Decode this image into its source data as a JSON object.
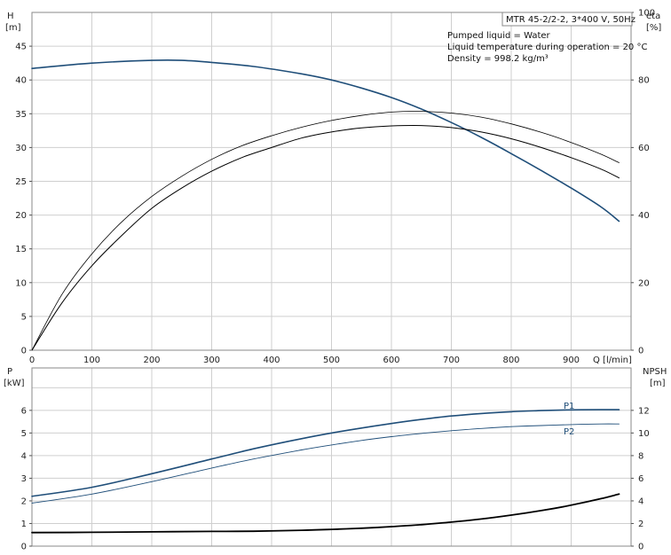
{
  "chart_data": [
    {
      "type": "line",
      "title": "MTR 45-2/2-2, 3*400 V, 50Hz",
      "annotations": [
        "Pumped liquid = Water",
        "Liquid temperature during operation = 20 °C",
        "Density = 998.2 kg/m³"
      ],
      "xlabel": "Q [l/min]",
      "xlim": [
        0,
        1000
      ],
      "x_ticks": [
        "0",
        "100",
        "200",
        "300",
        "400",
        "500",
        "600",
        "700",
        "800",
        "900"
      ],
      "y_left_label": [
        "H",
        "[m]"
      ],
      "y_left_lim": [
        0,
        50
      ],
      "y_left_ticks": [
        "0",
        "5",
        "10",
        "15",
        "20",
        "25",
        "30",
        "35",
        "40",
        "45"
      ],
      "y_right_label": [
        "eta",
        "[%]"
      ],
      "y_right_lim": [
        0,
        100
      ],
      "y_right_ticks": [
        "0",
        "20",
        "40",
        "60",
        "80",
        "100"
      ],
      "grid": true,
      "series": [
        {
          "axis": "left",
          "color": "#1f4e79",
          "width": 1.6,
          "x": [
            0,
            100,
            200,
            250,
            300,
            370,
            450,
            500,
            550,
            600,
            650,
            700,
            750,
            800,
            850,
            900,
            950,
            980
          ],
          "y": [
            41.7,
            42.5,
            42.9,
            42.9,
            42.6,
            42.0,
            40.9,
            40.0,
            38.8,
            37.4,
            35.7,
            33.7,
            31.5,
            29.1,
            26.6,
            24.0,
            21.2,
            19.1
          ]
        },
        {
          "axis": "right",
          "color": "#000000",
          "width": 1.0,
          "x": [
            0,
            50,
            100,
            150,
            200,
            250,
            300,
            350,
            400,
            450,
            500,
            550,
            600,
            650,
            700,
            750,
            800,
            850,
            900,
            950,
            980
          ],
          "y": [
            0,
            14,
            25,
            34,
            42,
            48,
            53,
            57,
            60,
            62.8,
            64.6,
            65.8,
            66.4,
            66.5,
            65.9,
            64.6,
            62.6,
            60.0,
            57.0,
            53.6,
            51.0
          ]
        },
        {
          "axis": "right",
          "color": "#000000",
          "width": 0.8,
          "x": [
            0,
            50,
            100,
            150,
            200,
            250,
            300,
            350,
            400,
            450,
            500,
            550,
            600,
            650,
            700,
            750,
            800,
            850,
            900,
            950,
            980
          ],
          "y": [
            0,
            16.5,
            28.5,
            38,
            45.5,
            51.5,
            56.5,
            60.5,
            63.5,
            66,
            68,
            69.5,
            70.5,
            70.7,
            70.2,
            69,
            67,
            64.5,
            61.5,
            58,
            55.5
          ]
        }
      ]
    },
    {
      "type": "line",
      "xlim": [
        0,
        1000
      ],
      "y_left_label": [
        "P",
        "[kW]"
      ],
      "y_left_lim": [
        0,
        7
      ],
      "y_left_ticks": [
        "0",
        "1",
        "2",
        "3",
        "4",
        "5",
        "6"
      ],
      "y_right_label": [
        "NPSH",
        "[m]"
      ],
      "y_right_lim": [
        0,
        14
      ],
      "y_right_ticks": [
        "0",
        "2",
        "4",
        "6",
        "8",
        "10",
        "12"
      ],
      "grid": true,
      "series": [
        {
          "name": "P1",
          "axis": "left",
          "color": "#1f4e79",
          "width": 1.6,
          "x": [
            0,
            100,
            200,
            300,
            370,
            450,
            500,
            550,
            600,
            650,
            700,
            750,
            800,
            850,
            900,
            950,
            980
          ],
          "y": [
            2.2,
            2.6,
            3.2,
            3.85,
            4.3,
            4.75,
            5.0,
            5.22,
            5.42,
            5.6,
            5.75,
            5.86,
            5.94,
            5.99,
            6.02,
            6.03,
            6.03
          ]
        },
        {
          "name": "P2",
          "axis": "left",
          "color": "#1f4e79",
          "width": 0.9,
          "x": [
            0,
            100,
            200,
            300,
            370,
            450,
            500,
            550,
            600,
            650,
            700,
            750,
            800,
            850,
            900,
            950,
            980
          ],
          "y": [
            1.9,
            2.3,
            2.85,
            3.45,
            3.85,
            4.25,
            4.47,
            4.67,
            4.84,
            4.98,
            5.1,
            5.2,
            5.28,
            5.33,
            5.37,
            5.4,
            5.4
          ]
        },
        {
          "axis": "right",
          "color": "#000000",
          "width": 1.8,
          "x": [
            0,
            100,
            200,
            300,
            370,
            450,
            500,
            550,
            600,
            650,
            700,
            750,
            800,
            850,
            900,
            950,
            980
          ],
          "y": [
            1.2,
            1.22,
            1.26,
            1.3,
            1.32,
            1.4,
            1.48,
            1.58,
            1.72,
            1.9,
            2.12,
            2.4,
            2.74,
            3.14,
            3.62,
            4.2,
            4.6
          ]
        }
      ]
    }
  ]
}
